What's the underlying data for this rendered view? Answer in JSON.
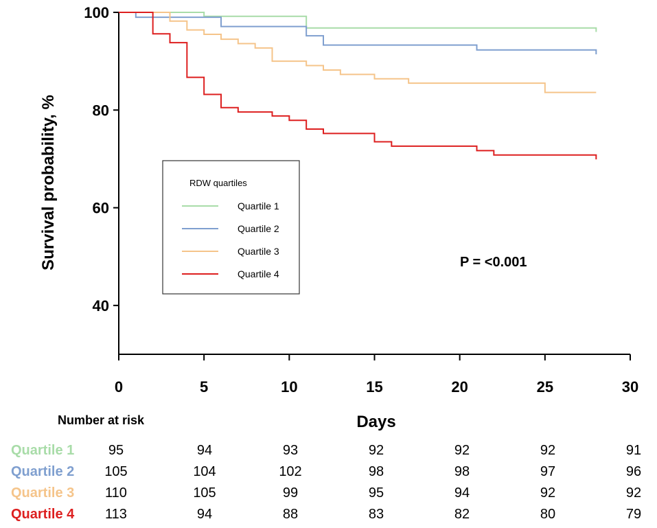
{
  "chart_data": {
    "type": "line",
    "subtype": "kaplan-meier-step",
    "xlabel": "Days",
    "ylabel": "Survival probability, %",
    "xlim": [
      0,
      30
    ],
    "ylim": [
      30,
      100
    ],
    "xticks": [
      0,
      5,
      10,
      15,
      20,
      25,
      30
    ],
    "yticks": [
      40,
      60,
      80,
      100
    ],
    "grid": false,
    "legend": {
      "title": "RDW quartiles",
      "placement": "center-left",
      "entries": [
        "Quartile 1",
        "Quartile 2",
        "Quartile 3",
        "Quartile 4"
      ]
    },
    "annotation": "P = <0.001",
    "series": [
      {
        "name": "Quartile 1",
        "color": "#a8dca8",
        "x": [
          0,
          5,
          11,
          28
        ],
        "y": [
          100,
          99.2,
          96.8,
          96.8
        ],
        "end_y": 96.0
      },
      {
        "name": "Quartile 2",
        "color": "#7f9fcf",
        "x": [
          0,
          1,
          6,
          11,
          12,
          21,
          28
        ],
        "y": [
          100,
          99.0,
          97.1,
          95.2,
          93.3,
          92.3,
          92.3
        ],
        "end_y": 91.4
      },
      {
        "name": "Quartile 3",
        "color": "#f5c48a",
        "x": [
          0,
          3,
          4,
          5,
          6,
          7,
          8,
          9,
          11,
          12,
          13,
          15,
          17,
          25,
          28
        ],
        "y": [
          100,
          98.2,
          96.4,
          95.5,
          94.5,
          93.6,
          92.7,
          90.0,
          89.1,
          88.2,
          87.3,
          86.4,
          85.5,
          83.6,
          83.6
        ],
        "end_y": 83.6
      },
      {
        "name": "Quartile 4",
        "color": "#dd1f1f",
        "x": [
          0,
          2,
          3,
          4,
          5,
          6,
          7,
          9,
          10,
          11,
          12,
          15,
          16,
          21,
          22,
          28
        ],
        "y": [
          100,
          95.6,
          93.8,
          86.7,
          83.2,
          80.5,
          79.6,
          78.8,
          77.9,
          76.1,
          75.2,
          73.5,
          72.6,
          71.7,
          70.8,
          70.8
        ],
        "end_y": 69.9
      }
    ],
    "risk_table": {
      "title": "Number at risk",
      "timepoints": [
        0,
        5,
        10,
        15,
        20,
        25,
        30
      ],
      "rows": [
        {
          "name": "Quartile 1",
          "color": "#a8dca8",
          "values": [
            "95",
            "94",
            "93",
            "92",
            "92",
            "92",
            "91"
          ]
        },
        {
          "name": "Quartile 2",
          "color": "#7f9fcf",
          "values": [
            "105",
            "104",
            "102",
            "98",
            "98",
            "97",
            "96"
          ]
        },
        {
          "name": "Quartile 3",
          "color": "#f5c48a",
          "values": [
            "110",
            "105",
            "99",
            "95",
            "94",
            "92",
            "92"
          ]
        },
        {
          "name": "Quartile 4",
          "color": "#dd1f1f",
          "values": [
            "113",
            "94",
            "88",
            "83",
            "82",
            "80",
            "79"
          ]
        }
      ]
    }
  }
}
